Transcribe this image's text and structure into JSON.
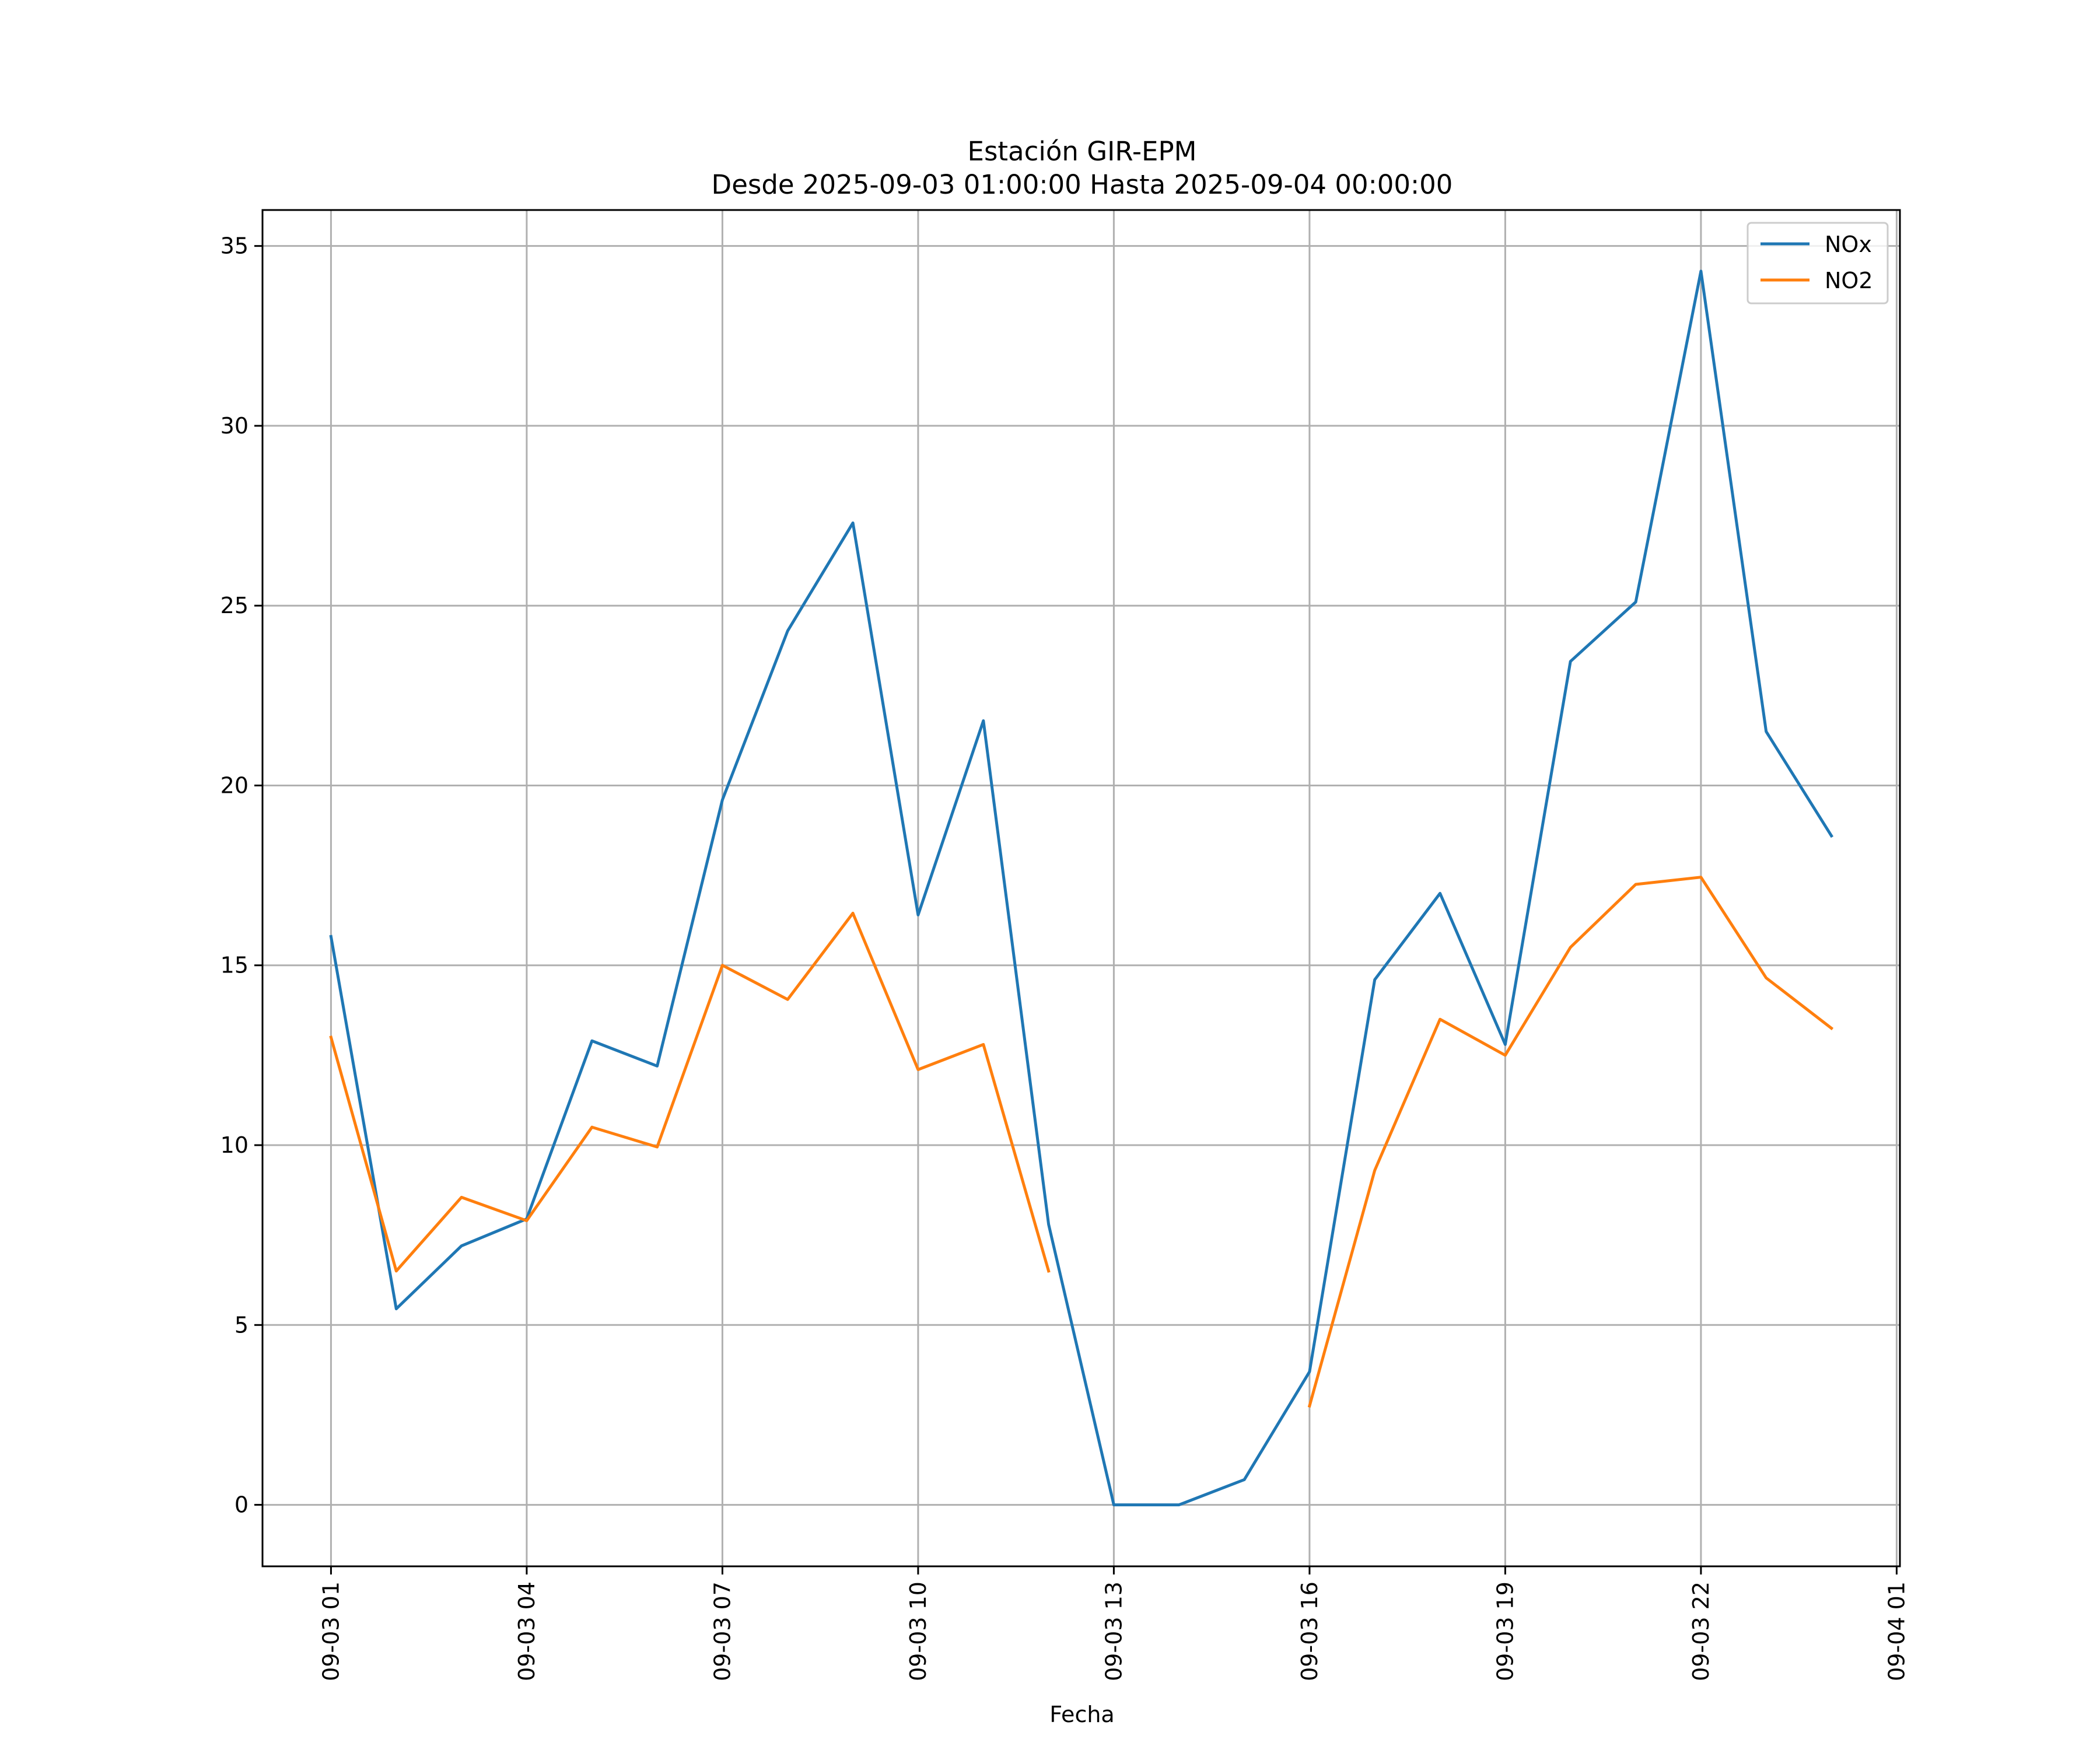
{
  "chart_data": {
    "type": "line",
    "title": "Estación GIR-EPM",
    "subtitle": "Desde 2025-09-03 01:00:00 Hasta 2025-09-04 00:00:00",
    "xlabel": "Fecha",
    "ylabel": "",
    "x": [
      "09-03 01",
      "09-03 02",
      "09-03 03",
      "09-03 04",
      "09-03 05",
      "09-03 06",
      "09-03 07",
      "09-03 08",
      "09-03 09",
      "09-03 10",
      "09-03 11",
      "09-03 12",
      "09-03 13",
      "09-03 14",
      "09-03 15",
      "09-03 16",
      "09-03 17",
      "09-03 18",
      "09-03 19",
      "09-03 20",
      "09-03 21",
      "09-03 22",
      "09-03 23",
      "09-04 00"
    ],
    "x_hours": [
      1,
      2,
      3,
      4,
      5,
      6,
      7,
      8,
      9,
      10,
      11,
      12,
      13,
      14,
      15,
      16,
      17,
      18,
      19,
      20,
      21,
      22,
      23,
      24
    ],
    "xlim": [
      -0.05,
      25.05
    ],
    "ylim": [
      -1.71,
      36.0
    ],
    "xticks": [
      {
        "label": "09-03 01",
        "hour": 1
      },
      {
        "label": "09-03 04",
        "hour": 4
      },
      {
        "label": "09-03 07",
        "hour": 7
      },
      {
        "label": "09-03 10",
        "hour": 10
      },
      {
        "label": "09-03 13",
        "hour": 13
      },
      {
        "label": "09-03 16",
        "hour": 16
      },
      {
        "label": "09-03 19",
        "hour": 19
      },
      {
        "label": "09-03 22",
        "hour": 22
      },
      {
        "label": "09-04 01",
        "hour": 25
      }
    ],
    "yticks": [
      0,
      5,
      10,
      15,
      20,
      25,
      30,
      35
    ],
    "grid": true,
    "legend_position": "top-right",
    "series": [
      {
        "name": "NOx",
        "color": "#1f77b4",
        "values": [
          15.8,
          5.45,
          7.2,
          7.95,
          12.9,
          12.2,
          19.6,
          24.3,
          27.3,
          16.4,
          21.8,
          7.8,
          0.0,
          0.0,
          0.7,
          3.7,
          14.6,
          17.0,
          12.8,
          23.45,
          25.1,
          34.3,
          21.5,
          18.6
        ]
      },
      {
        "name": "NO2",
        "color": "#ff7f0e",
        "values": [
          13.0,
          6.5,
          8.55,
          7.9,
          10.5,
          9.95,
          15.0,
          14.05,
          16.45,
          12.1,
          12.8,
          6.5,
          null,
          null,
          null,
          2.75,
          9.3,
          13.5,
          12.5,
          15.5,
          17.25,
          17.45,
          14.65,
          13.25
        ]
      }
    ]
  }
}
